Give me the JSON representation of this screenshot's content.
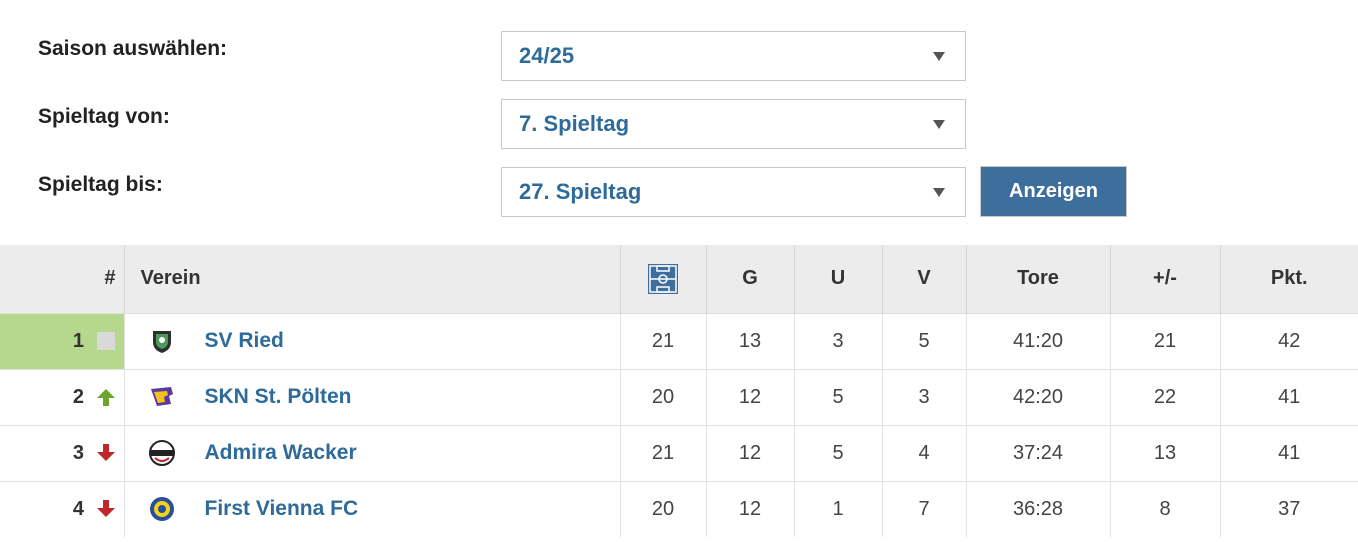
{
  "filters": {
    "season_label": "Saison auswählen:",
    "season_value": "24/25",
    "from_label": "Spieltag von:",
    "from_value": "7. Spieltag",
    "to_label": "Spieltag bis:",
    "to_value": "27. Spieltag",
    "submit_label": "Anzeigen"
  },
  "table": {
    "headers": {
      "rank": "#",
      "club": "Verein",
      "matches_icon": "pitch-icon",
      "won": "G",
      "draw": "U",
      "lost": "V",
      "goals": "Tore",
      "diff": "+/-",
      "points": "Pkt."
    },
    "rows": [
      {
        "rank": "1",
        "trend": "unchanged",
        "club": "SV Ried",
        "matches": "21",
        "won": "13",
        "draw": "3",
        "lost": "5",
        "goals": "41:20",
        "diff": "21",
        "points": "42"
      },
      {
        "rank": "2",
        "trend": "up",
        "club": "SKN St. Pölten",
        "matches": "20",
        "won": "12",
        "draw": "5",
        "lost": "3",
        "goals": "42:20",
        "diff": "22",
        "points": "41"
      },
      {
        "rank": "3",
        "trend": "down",
        "club": "Admira Wacker",
        "matches": "21",
        "won": "12",
        "draw": "5",
        "lost": "4",
        "goals": "37:24",
        "diff": "13",
        "points": "41"
      },
      {
        "rank": "4",
        "trend": "down",
        "club": "First Vienna FC",
        "matches": "20",
        "won": "12",
        "draw": "1",
        "lost": "7",
        "goals": "36:28",
        "diff": "8",
        "points": "37"
      }
    ]
  },
  "colors": {
    "accent": "#3e6f9c",
    "link": "#2e6b9a",
    "leader": "#b6d88c",
    "up": "#6aa42b",
    "down": "#c0262c"
  }
}
